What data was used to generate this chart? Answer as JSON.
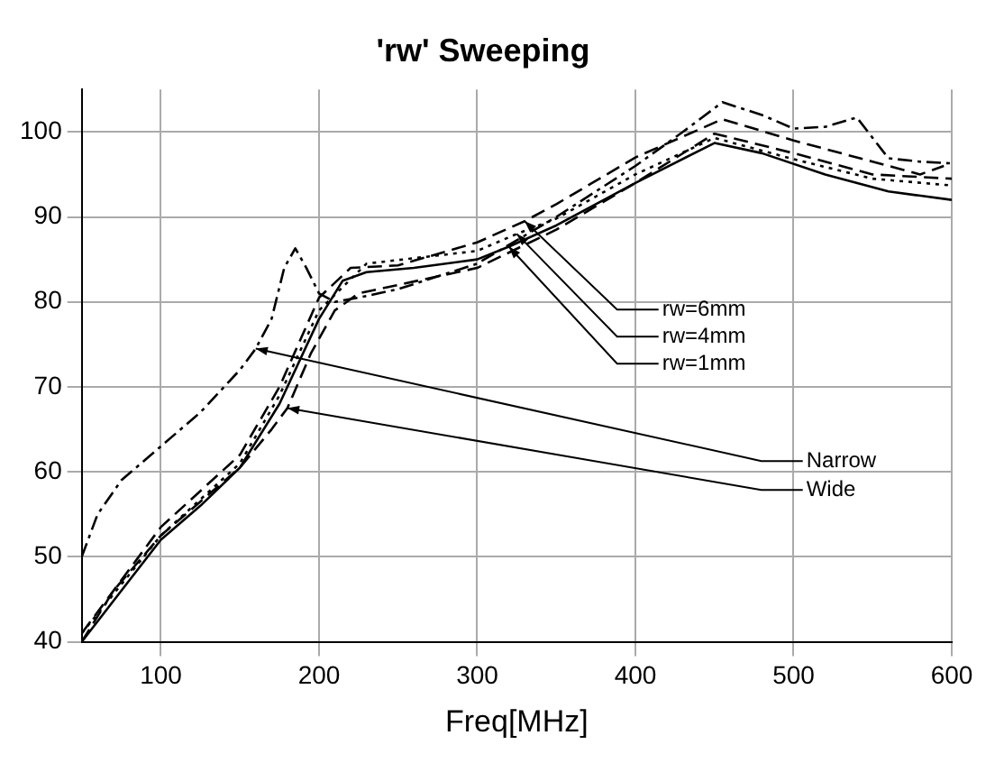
{
  "chart_data": {
    "type": "line",
    "title": "'rw' Sweeping",
    "xlabel": "Freq[MHz]",
    "xlim": [
      50,
      600
    ],
    "xticks": [
      100,
      200,
      300,
      400,
      500,
      600
    ],
    "ylim": [
      40,
      105
    ],
    "yticks": [
      40,
      50,
      60,
      70,
      80,
      90,
      100
    ],
    "grid": true,
    "legend": false,
    "marker": "none",
    "annotations": [
      {
        "text": "Narrow",
        "x": 160,
        "y": 74.5
      },
      {
        "text": "Wide",
        "x": 180,
        "y": 67.5
      },
      {
        "text": "rw=6mm",
        "x": 330,
        "y": 89.5
      },
      {
        "text": "rw=4mm",
        "x": 325,
        "y": 88
      },
      {
        "text": "rw=1mm",
        "x": 320,
        "y": 86.5
      }
    ],
    "series": [
      {
        "color": "#000000",
        "line_style": "dashdot",
        "x": [
          50,
          60,
          75,
          100,
          125,
          150,
          160,
          170,
          178,
          185,
          192,
          200,
          210,
          225,
          250,
          300,
          350,
          400,
          430,
          455,
          480,
          500,
          520,
          540,
          560,
          580,
          600
        ],
        "values": [
          50,
          55,
          59,
          63,
          67,
          72,
          74.5,
          78,
          84,
          86.3,
          84,
          81,
          80,
          80.5,
          81.5,
          84.5,
          90,
          96,
          100,
          103.5,
          102,
          100.4,
          100.6,
          101.7,
          96.9,
          96.5,
          96.3
        ]
      },
      {
        "color": "#000000",
        "line_style": "dashed",
        "x": [
          50,
          70,
          100,
          125,
          150,
          170,
          180,
          195,
          210,
          225,
          250,
          300,
          350,
          400,
          450,
          500,
          550,
          600
        ],
        "values": [
          40,
          46,
          52.5,
          56.5,
          60.5,
          65,
          67.5,
          74,
          79,
          81,
          82,
          84,
          88.5,
          94,
          99.8,
          97.5,
          95,
          94.5
        ]
      },
      {
        "color": "#000000",
        "line_style": "dashed",
        "x": [
          50,
          100,
          150,
          175,
          200,
          220,
          250,
          300,
          330,
          350,
          400,
          455,
          500,
          550,
          580,
          595
        ],
        "values": [
          41,
          53.5,
          62,
          70,
          80.5,
          84,
          84.3,
          87,
          89.5,
          91.5,
          97,
          101.5,
          99,
          96.5,
          95,
          96
        ]
      },
      {
        "color": "#000000",
        "line_style": "dotted",
        "x": [
          50,
          100,
          150,
          175,
          200,
          230,
          300,
          325,
          350,
          400,
          450,
          500,
          550,
          600
        ],
        "values": [
          41,
          52.5,
          61,
          69,
          79,
          84.5,
          86,
          88,
          89.8,
          95,
          99.3,
          96.8,
          94.5,
          93.7
        ]
      },
      {
        "color": "#000000",
        "line_style": "solid",
        "x": [
          50,
          75,
          100,
          125,
          150,
          175,
          200,
          215,
          230,
          260,
          300,
          320,
          350,
          400,
          450,
          480,
          520,
          560,
          600
        ],
        "values": [
          40,
          46,
          52,
          56,
          60.5,
          68,
          78,
          82.5,
          83.5,
          84,
          85,
          86.5,
          89,
          94,
          98.7,
          97.5,
          95,
          93,
          92
        ]
      }
    ]
  }
}
